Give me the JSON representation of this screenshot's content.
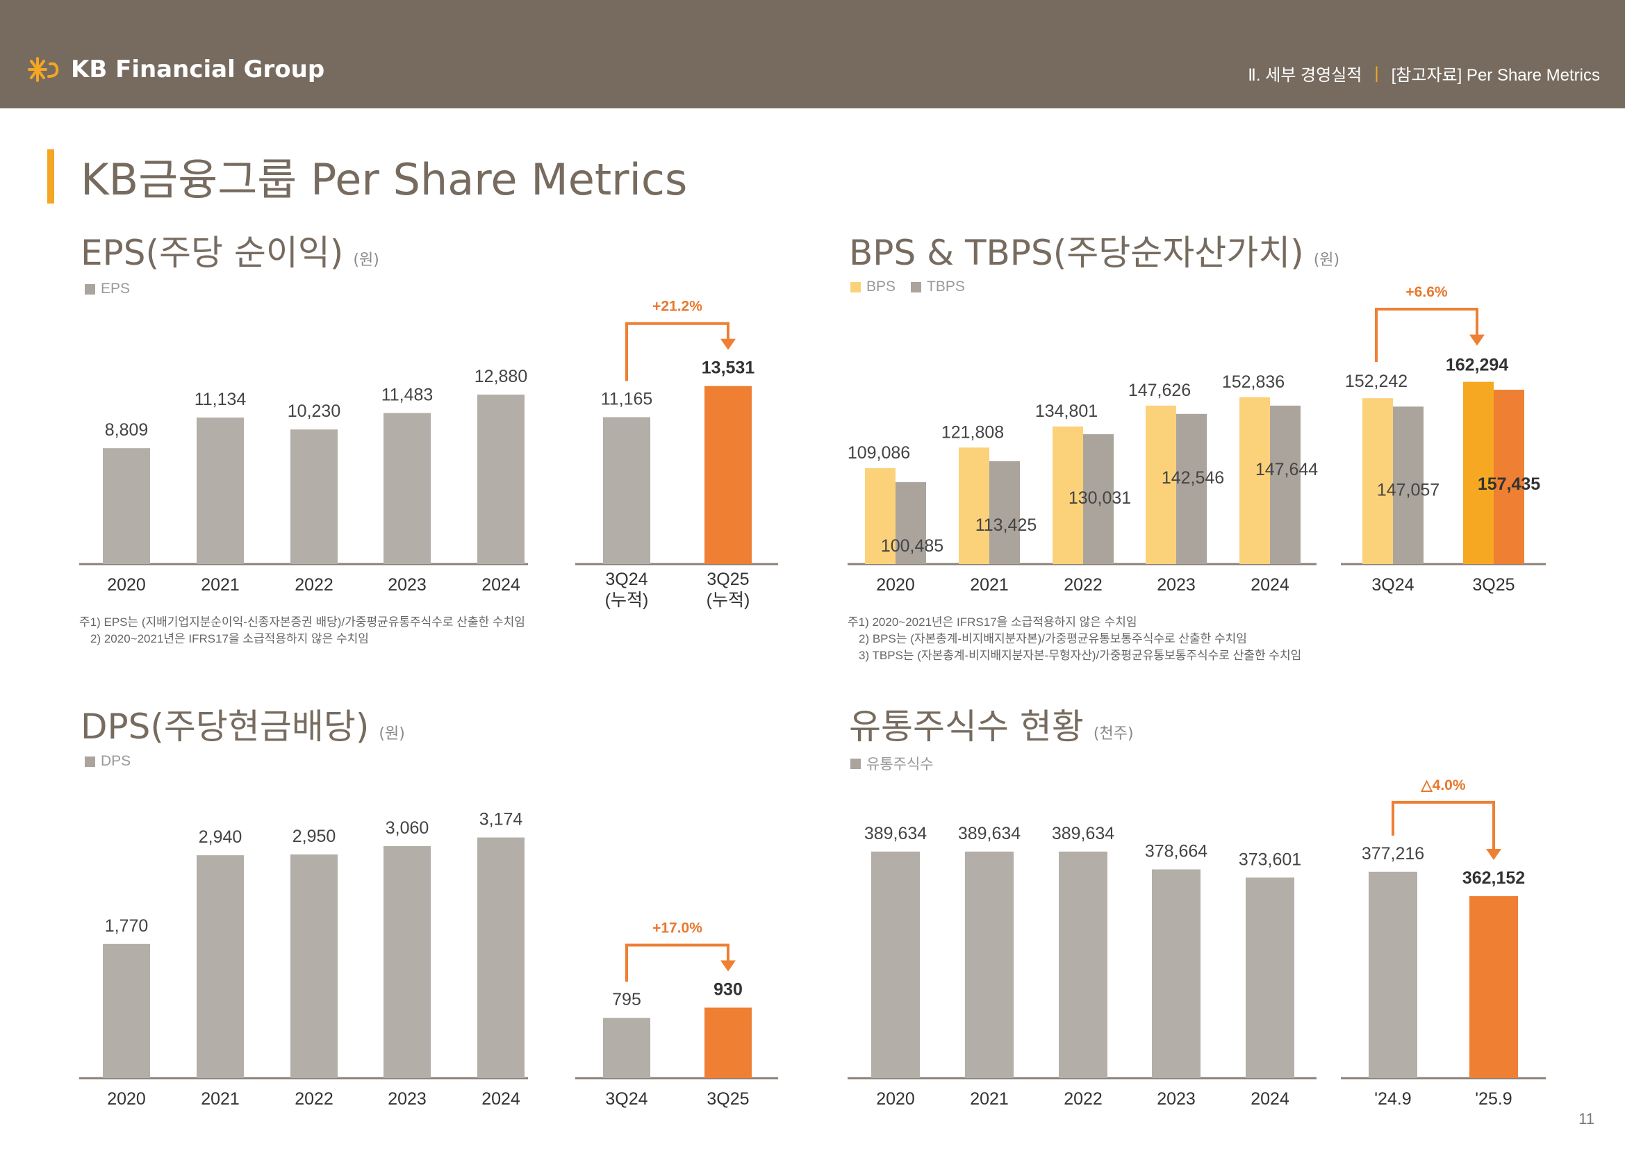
{
  "header": {
    "brand": "KB Financial Group",
    "breadcrumb_section": "Ⅱ. 세부 경영실적",
    "breadcrumb_divider": "|",
    "breadcrumb_page": "[참고자료] Per Share Metrics"
  },
  "page_title": "KB금융그룹 Per Share Metrics",
  "page_number": "11",
  "colors": {
    "gray": "#b3aea8",
    "dark_gray": "#aaa49c",
    "orange": "#ee7f33",
    "bps": "#fbd27a",
    "bps_hl": "#f7a823",
    "header": "#776b5f",
    "accent": "#f5a623"
  },
  "sections": {
    "eps": {
      "title": "EPS(주당 순이익)",
      "unit": "(원)",
      "legend": [
        "EPS"
      ]
    },
    "bps": {
      "title": "BPS & TBPS(주당순자산가치)",
      "unit": "(원)",
      "legend": [
        "BPS",
        "TBPS"
      ]
    },
    "dps": {
      "title": "DPS(주당현금배당)",
      "unit": "(원)",
      "legend": [
        "DPS"
      ]
    },
    "shares": {
      "title": "유통주식수 현황",
      "unit": "(천주)",
      "legend": [
        "유통주식수"
      ]
    }
  },
  "notes": {
    "eps": [
      "주1) EPS는 (지배기업지분순이익-신종자본증권 배당)/가중평균유통주식수로 산출한 수치임",
      "2) 2020~2021년은 IFRS17을 소급적용하지 않은 수치임"
    ],
    "bps": [
      "주1) 2020~2021년은 IFRS17을 소급적용하지 않은 수치임",
      "2) BPS는 (자본총계-비지배지분자본)/가중평균유통보통주식수로 산출한 수치임",
      "3) TBPS는 (자본총계-비지배지분자본-무형자산)/가중평균유통보통주식수로 산출한 수치임"
    ]
  },
  "chart_data": [
    {
      "id": "eps",
      "type": "bar",
      "title": "EPS(주당 순이익)",
      "categories": [
        "2020",
        "2021",
        "2022",
        "2023",
        "2024"
      ],
      "values": [
        8809,
        11134,
        10230,
        11483,
        12880
      ],
      "labels": [
        "8,809",
        "11,134",
        "10,230",
        "11,483",
        "12,880"
      ],
      "compare": {
        "categories": [
          "3Q24",
          "3Q25"
        ],
        "sublabels": [
          "(누적)",
          "(누적)"
        ],
        "values": [
          11165,
          13531
        ],
        "labels": [
          "11,165",
          "13,531"
        ],
        "delta": "+21.2%"
      },
      "ylim": [
        0,
        17000
      ]
    },
    {
      "id": "bps",
      "type": "bar",
      "title": "BPS & TBPS(주당순자산가치)",
      "categories": [
        "2020",
        "2021",
        "2022",
        "2023",
        "2024"
      ],
      "series": [
        {
          "name": "BPS",
          "values": [
            109086,
            121808,
            134801,
            147626,
            152836
          ],
          "labels": [
            "109,086",
            "121,808",
            "134,801",
            "147,626",
            "152,836"
          ]
        },
        {
          "name": "TBPS",
          "values": [
            100485,
            113425,
            130031,
            142546,
            147644
          ],
          "labels": [
            "100,485",
            "113,425",
            "130,031",
            "142,546",
            "147,644"
          ]
        }
      ],
      "compare": {
        "categories": [
          "3Q24",
          "3Q25"
        ],
        "series": [
          {
            "name": "BPS",
            "values": [
              152242,
              162294
            ],
            "labels": [
              "152,242",
              "162,294"
            ]
          },
          {
            "name": "TBPS",
            "values": [
              147057,
              157435
            ],
            "labels": [
              "147,057",
              "157,435"
            ]
          }
        ],
        "delta": "+6.6%"
      },
      "ylim": [
        50000,
        175000
      ]
    },
    {
      "id": "dps",
      "type": "bar",
      "title": "DPS(주당현금배당)",
      "categories": [
        "2020",
        "2021",
        "2022",
        "2023",
        "2024"
      ],
      "values": [
        1770,
        2940,
        2950,
        3060,
        3174
      ],
      "labels": [
        "1,770",
        "2,940",
        "2,950",
        "3,060",
        "3,174"
      ],
      "compare": {
        "categories": [
          "3Q24",
          "3Q25"
        ],
        "values": [
          795,
          930
        ],
        "labels": [
          "795",
          "930"
        ],
        "delta": "+17.0%"
      },
      "ylim": [
        0,
        3500
      ]
    },
    {
      "id": "shares",
      "type": "bar",
      "title": "유통주식수 현황",
      "categories": [
        "2020",
        "2021",
        "2022",
        "2023",
        "2024"
      ],
      "values": [
        389634,
        389634,
        389634,
        378664,
        373601
      ],
      "labels": [
        "389,634",
        "389,634",
        "389,634",
        "378,664",
        "373,601"
      ],
      "compare": {
        "categories": [
          "'24.9",
          "'25.9"
        ],
        "values": [
          377216,
          362152
        ],
        "labels": [
          "377,216",
          "362,152"
        ],
        "delta": "△4.0%"
      },
      "ylim": [
        250000,
        390000
      ]
    }
  ]
}
